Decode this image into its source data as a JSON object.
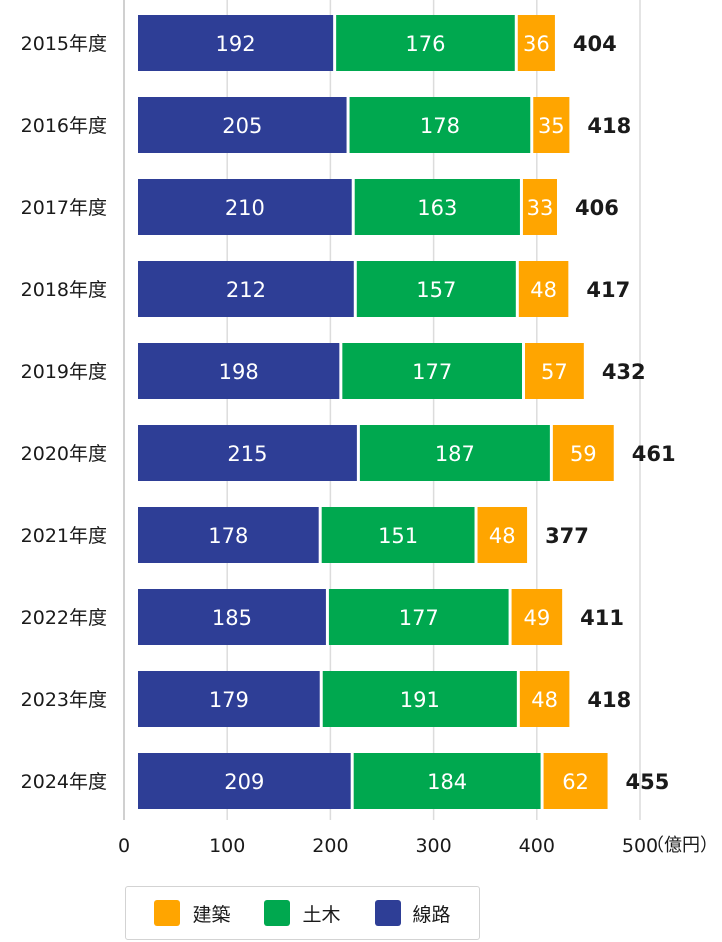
{
  "chart_data": {
    "type": "bar",
    "orientation": "horizontal",
    "stacked": true,
    "categories": [
      "2015年度",
      "2016年度",
      "2017年度",
      "2018年度",
      "2019年度",
      "2020年度",
      "2021年度",
      "2022年度",
      "2023年度",
      "2024年度"
    ],
    "series": [
      {
        "name": "線路",
        "color": "#2e3e96",
        "values": [
          192,
          205,
          210,
          212,
          198,
          215,
          178,
          185,
          179,
          209
        ]
      },
      {
        "name": "土木",
        "color": "#00a84f",
        "values": [
          176,
          178,
          163,
          157,
          177,
          187,
          151,
          177,
          191,
          184
        ]
      },
      {
        "name": "建築",
        "color": "#ffa500",
        "values": [
          36,
          35,
          33,
          48,
          57,
          59,
          48,
          49,
          48,
          62
        ]
      }
    ],
    "totals": [
      404,
      418,
      406,
      417,
      432,
      461,
      377,
      411,
      418,
      455
    ],
    "x_ticks": [
      "0",
      "100",
      "200",
      "300",
      "400",
      "500"
    ],
    "xlim": [
      0,
      500
    ],
    "x_unit": "（億円）",
    "grid": true,
    "legend_position": "bottom",
    "legend_order": [
      "建築",
      "土木",
      "線路"
    ]
  }
}
